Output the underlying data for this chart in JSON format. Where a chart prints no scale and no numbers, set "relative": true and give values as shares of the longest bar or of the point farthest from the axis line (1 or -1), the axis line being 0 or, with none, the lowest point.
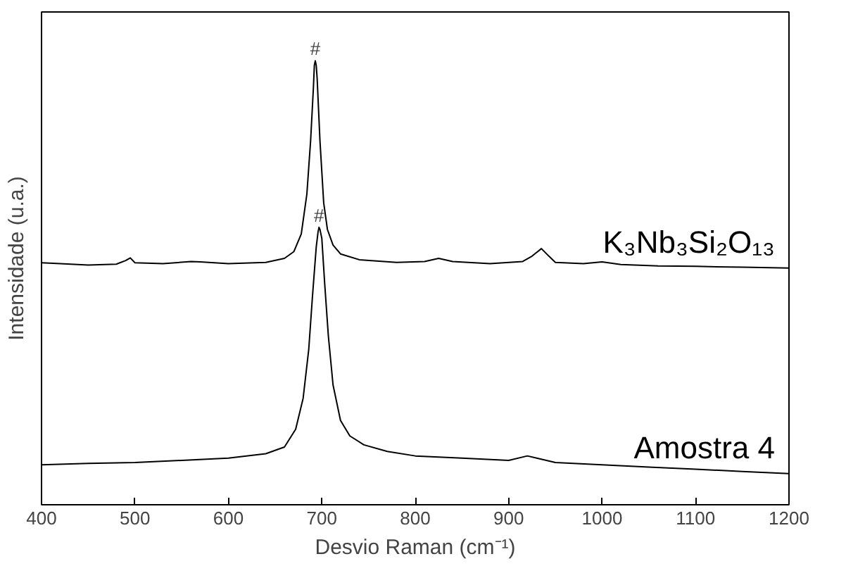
{
  "chart_data": {
    "type": "line",
    "relative": true,
    "xlabel": "Desvio Raman (cm⁻¹)",
    "ylabel": "Intensidade (u.a.)",
    "xlim": [
      400,
      1200
    ],
    "xticks": [
      400,
      500,
      600,
      700,
      800,
      900,
      1000,
      1100,
      1200
    ],
    "tick_labels": "x",
    "grid": false,
    "legend": false,
    "marker": "none",
    "line_style": "solid",
    "series": [
      {
        "name": "K₃Nb₃Si₂O₁₃",
        "color": "#000000",
        "x": [
          400,
          420,
          450,
          480,
          490,
          495,
          500,
          530,
          560,
          570,
          600,
          640,
          660,
          670,
          678,
          684,
          688,
          691,
          692,
          693,
          694,
          695,
          698,
          702,
          706,
          712,
          720,
          740,
          780,
          810,
          825,
          840,
          880,
          915,
          925,
          935,
          943,
          950,
          980,
          1000,
          1020,
          1060,
          1100,
          1150,
          1200
        ],
        "values": [
          0.545,
          0.543,
          0.54,
          0.542,
          0.55,
          0.556,
          0.545,
          0.543,
          0.548,
          0.547,
          0.543,
          0.546,
          0.555,
          0.57,
          0.61,
          0.7,
          0.82,
          0.94,
          0.99,
          1.0,
          0.99,
          0.96,
          0.82,
          0.68,
          0.62,
          0.585,
          0.565,
          0.552,
          0.546,
          0.548,
          0.555,
          0.548,
          0.543,
          0.548,
          0.56,
          0.577,
          0.56,
          0.546,
          0.543,
          0.547,
          0.541,
          0.538,
          0.537,
          0.535,
          0.533
        ]
      },
      {
        "name": "Amostra 4",
        "color": "#000000",
        "x": [
          400,
          450,
          500,
          550,
          600,
          640,
          660,
          672,
          680,
          686,
          690,
          694,
          696,
          697,
          698,
          700,
          703,
          707,
          712,
          720,
          730,
          745,
          770,
          800,
          850,
          900,
          920,
          930,
          950,
          1000,
          1050,
          1100,
          1150,
          1200
        ],
        "values": [
          0.09,
          0.093,
          0.095,
          0.1,
          0.105,
          0.115,
          0.13,
          0.17,
          0.24,
          0.35,
          0.47,
          0.58,
          0.615,
          0.625,
          0.62,
          0.6,
          0.5,
          0.38,
          0.27,
          0.19,
          0.155,
          0.135,
          0.12,
          0.11,
          0.105,
          0.1,
          0.11,
          0.105,
          0.095,
          0.09,
          0.085,
          0.08,
          0.075,
          0.07
        ]
      }
    ],
    "annotations": [
      {
        "text": "#",
        "x": 693,
        "y": 1.0
      },
      {
        "text": "#",
        "x": 697,
        "y": 0.625
      }
    ]
  }
}
